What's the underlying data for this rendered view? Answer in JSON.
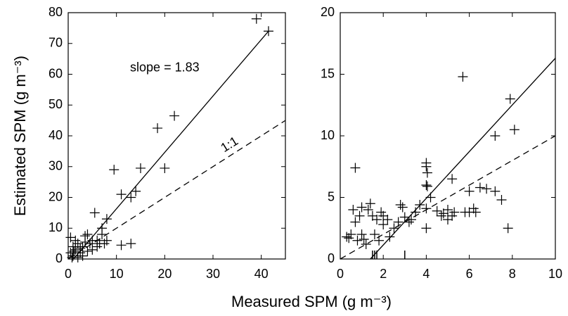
{
  "xlabel": "Measured SPM (g m⁻³)",
  "chart_data": [
    {
      "type": "scatter",
      "ylabel": "Estimated SPM (g m⁻³)",
      "color": "#000000",
      "marker": "+",
      "xlim": [
        0,
        45
      ],
      "xticks": [
        0,
        10,
        20,
        30,
        40
      ],
      "ylim": [
        0,
        80
      ],
      "yticks": [
        0,
        10,
        20,
        30,
        40,
        50,
        60,
        70,
        80
      ],
      "x": [
        39,
        41.5,
        22,
        18.5,
        20,
        15,
        9.5,
        14,
        11,
        13,
        5.5,
        8,
        7,
        7,
        13,
        11,
        0.5,
        3.5,
        4,
        2,
        1,
        1.5,
        2.5,
        3,
        4.5,
        5,
        6,
        7.5,
        1,
        0.5,
        2,
        1.5,
        3,
        8,
        5,
        6.5,
        2.5,
        0.8,
        4,
        3.5,
        1.2,
        6
      ],
      "values": [
        78,
        74,
        46.5,
        42.5,
        29.5,
        29.5,
        29,
        22,
        21,
        20,
        15,
        13,
        10,
        8,
        5,
        4.5,
        7,
        7.5,
        8,
        5,
        4,
        3,
        2,
        4,
        5,
        3,
        4,
        5,
        1,
        2,
        0.5,
        6,
        1,
        6,
        6,
        5,
        3.5,
        0.5,
        2.5,
        5.5,
        2.5,
        6
      ],
      "lines": [
        {
          "x": [
            1.1,
            41.5
          ],
          "values": [
            0,
            74
          ],
          "dash": false
        },
        {
          "x": [
            0,
            45
          ],
          "values": [
            0,
            45
          ],
          "dash": true
        }
      ],
      "annotations": [
        {
          "text": "slope = 1.83"
        },
        {
          "text": "1:1"
        }
      ]
    },
    {
      "type": "scatter",
      "color": "#000000",
      "marker": "+",
      "xlim": [
        0,
        10
      ],
      "xticks": [
        0,
        2,
        4,
        6,
        8,
        10
      ],
      "ylim": [
        0,
        20
      ],
      "yticks": [
        0,
        5,
        10,
        15,
        20
      ],
      "x": [
        5.7,
        7.9,
        8.1,
        7.2,
        0.7,
        4,
        4,
        4.05,
        4,
        4.05,
        5.2,
        4.2,
        6,
        6.5,
        6.8,
        7.2,
        7.5,
        7.8,
        6,
        6.3,
        4,
        5.8,
        5,
        5.2,
        4.8,
        4.5,
        4.7,
        5,
        5.3,
        4,
        3.7,
        3.5,
        3.3,
        3,
        2.8,
        2.9,
        2.7,
        2.5,
        2.2,
        2,
        1.9,
        1.7,
        1.5,
        1.3,
        1,
        0.6,
        0.7,
        0.5,
        0.3,
        0.8,
        1,
        1.2,
        1.6,
        1.8,
        2,
        2.3,
        1.4,
        1.1,
        0.9,
        3.2,
        6.2,
        0.4
      ],
      "values": [
        14.8,
        13,
        10.5,
        10,
        7.4,
        7.8,
        7.5,
        7,
        6,
        5.9,
        6.5,
        5,
        5.5,
        5.8,
        5.7,
        5.5,
        4.8,
        2.5,
        3.8,
        3.8,
        2.5,
        3.8,
        4,
        3.5,
        3.7,
        3.9,
        3.5,
        3.2,
        3.8,
        4.1,
        4.4,
        3.8,
        3.2,
        3.4,
        4.4,
        4.2,
        3,
        2.5,
        3.2,
        3.5,
        3.8,
        3.2,
        3.5,
        4,
        4.2,
        4,
        3,
        2,
        1.8,
        1.5,
        2,
        1.2,
        2,
        1.5,
        2.8,
        1.8,
        4.5,
        1.6,
        3.5,
        3,
        4.1,
        1.7
      ],
      "rug_x": [
        1.5,
        1.6,
        1.7,
        3.0
      ],
      "lines": [
        {
          "x": [
            1.4,
            10
          ],
          "values": [
            0,
            16.3
          ],
          "dash": false
        },
        {
          "x": [
            0,
            10
          ],
          "values": [
            0,
            10
          ],
          "dash": true
        }
      ]
    }
  ]
}
